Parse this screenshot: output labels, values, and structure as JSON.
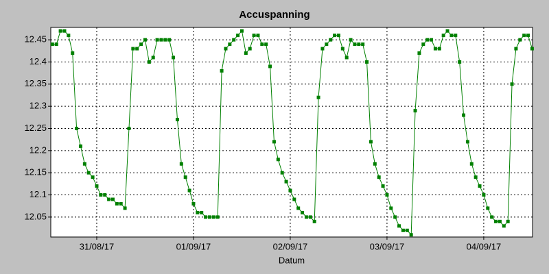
{
  "chart_data": {
    "type": "line",
    "title": "Accuspanning",
    "x_label": "Datum",
    "x": [
      -11,
      -10,
      -9,
      -8,
      -7,
      -6,
      -5,
      -4,
      -3,
      -2,
      -1,
      0,
      1,
      2,
      3,
      4,
      5,
      6,
      7,
      8,
      9,
      10,
      11,
      12,
      13,
      14,
      15,
      16,
      17,
      18,
      19,
      20,
      21,
      22,
      23,
      24,
      25,
      26,
      27,
      28,
      29,
      30,
      31,
      32,
      33,
      34,
      35,
      36,
      37,
      38,
      39,
      40,
      41,
      42,
      43,
      44,
      45,
      46,
      47,
      48,
      49,
      50,
      51,
      52,
      53,
      54,
      55,
      56,
      57,
      58,
      59,
      60,
      61,
      62,
      63,
      64,
      65,
      66,
      67,
      68,
      69,
      70,
      71,
      72,
      73,
      74,
      75,
      76,
      77,
      78,
      79,
      80,
      81,
      82,
      83,
      84,
      85,
      86,
      87,
      88,
      89,
      90,
      91,
      92,
      93,
      94,
      95,
      96,
      97,
      98,
      99,
      100,
      101,
      102,
      103,
      104,
      105,
      106,
      107,
      108
    ],
    "values": [
      12.44,
      12.44,
      12.47,
      12.47,
      12.46,
      12.42,
      12.25,
      12.21,
      12.17,
      12.15,
      12.14,
      12.12,
      12.1,
      12.1,
      12.09,
      12.09,
      12.08,
      12.08,
      12.07,
      12.25,
      12.43,
      12.43,
      12.44,
      12.45,
      12.4,
      12.41,
      12.45,
      12.45,
      12.45,
      12.45,
      12.41,
      12.27,
      12.17,
      12.14,
      12.11,
      12.08,
      12.06,
      12.06,
      12.05,
      12.05,
      12.05,
      12.05,
      12.38,
      12.43,
      12.44,
      12.45,
      12.46,
      12.47,
      12.42,
      12.43,
      12.46,
      12.46,
      12.44,
      12.44,
      12.39,
      12.22,
      12.18,
      12.15,
      12.13,
      12.11,
      12.09,
      12.07,
      12.06,
      12.05,
      12.05,
      12.04,
      12.32,
      12.43,
      12.44,
      12.45,
      12.46,
      12.46,
      12.43,
      12.41,
      12.45,
      12.44,
      12.44,
      12.44,
      12.4,
      12.22,
      12.17,
      12.14,
      12.12,
      12.1,
      12.07,
      12.05,
      12.03,
      12.02,
      12.02,
      12.01,
      12.29,
      12.42,
      12.44,
      12.45,
      12.45,
      12.43,
      12.43,
      12.46,
      12.47,
      12.46,
      12.46,
      12.4,
      12.28,
      12.22,
      12.17,
      12.14,
      12.12,
      12.1,
      12.07,
      12.05,
      12.04,
      12.04,
      12.03,
      12.04,
      12.35,
      12.43,
      12.45,
      12.46,
      12.46,
      12.43
    ],
    "color": "#008000",
    "xlim": [
      -11.4,
      108.1
    ],
    "xticks": [
      {
        "value": 0,
        "label": "31/08/17"
      },
      {
        "value": 24,
        "label": "01/09/17"
      },
      {
        "value": 48,
        "label": "02/09/17"
      },
      {
        "value": 72,
        "label": "03/09/17"
      },
      {
        "value": 96,
        "label": "04/09/17"
      }
    ],
    "ylim": [
      12.005,
      12.478
    ],
    "yticks": [
      12.05,
      12.1,
      12.15,
      12.2,
      12.25,
      12.3,
      12.35,
      12.4,
      12.45
    ],
    "grid": true
  }
}
